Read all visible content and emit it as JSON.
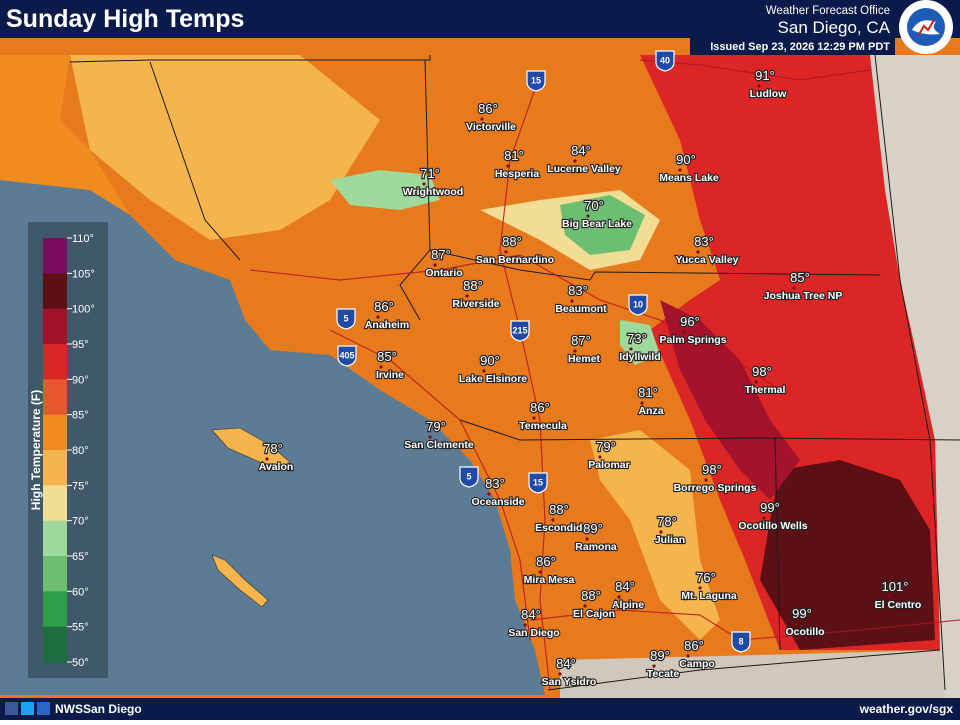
{
  "header": {
    "title": "Sunday High Temps",
    "office": "Weather Forecast Office",
    "location": "San Diego, CA",
    "issued": "Issued Sep 23, 2026 12:29 PM PDT"
  },
  "footer": {
    "social": "NWSSan Diego",
    "website": "weather.gov/sgx"
  },
  "legend": {
    "title": "High Temperature (F)",
    "ticks": [
      "110°",
      "105°",
      "100°",
      "95°",
      "90°",
      "85°",
      "80°",
      "75°",
      "70°",
      "65°",
      "60°",
      "55°",
      "50°"
    ],
    "colors": [
      "#7b0b5e",
      "#5c1016",
      "#a5122b",
      "#dc2626",
      "#e9572c",
      "#f08b1e",
      "#f6b44c",
      "#f2dd94",
      "#9fd99b",
      "#6cbf70",
      "#2f9e4b",
      "#1d6e3f"
    ]
  },
  "highways": [
    "15",
    "40",
    "5",
    "405",
    "215",
    "10",
    "5",
    "15",
    "8"
  ],
  "cities": [
    {
      "name": "Ludlow",
      "temp": "91°"
    },
    {
      "name": "Victorville",
      "temp": "86°"
    },
    {
      "name": "Hesperia",
      "temp": "81°"
    },
    {
      "name": "Lucerne Valley",
      "temp": "84°"
    },
    {
      "name": "Means Lake",
      "temp": "90°"
    },
    {
      "name": "Wrightwood",
      "temp": "71°"
    },
    {
      "name": "Big Bear Lake",
      "temp": "70°"
    },
    {
      "name": "Yucca Valley",
      "temp": "83°"
    },
    {
      "name": "Ontario",
      "temp": "87°"
    },
    {
      "name": "San Bernardino",
      "temp": "88°"
    },
    {
      "name": "Joshua Tree NP",
      "temp": "85°"
    },
    {
      "name": "Riverside",
      "temp": "88°"
    },
    {
      "name": "Beaumont",
      "temp": "83°"
    },
    {
      "name": "Anaheim",
      "temp": "86°"
    },
    {
      "name": "Palm Springs",
      "temp": "96°"
    },
    {
      "name": "Idyllwild",
      "temp": "73°"
    },
    {
      "name": "Hemet",
      "temp": "87°"
    },
    {
      "name": "Irvine",
      "temp": "85°"
    },
    {
      "name": "Lake Elsinore",
      "temp": "90°"
    },
    {
      "name": "Thermal",
      "temp": "98°"
    },
    {
      "name": "Anza",
      "temp": "81°"
    },
    {
      "name": "Temecula",
      "temp": "86°"
    },
    {
      "name": "San Clemente",
      "temp": "79°"
    },
    {
      "name": "Avalon",
      "temp": "78°"
    },
    {
      "name": "Palomar",
      "temp": "79°"
    },
    {
      "name": "Borrego Springs",
      "temp": "98°"
    },
    {
      "name": "Oceanside",
      "temp": "83°"
    },
    {
      "name": "Ocotillo Wells",
      "temp": "99°"
    },
    {
      "name": "Escondido",
      "temp": "88°"
    },
    {
      "name": "Ramona",
      "temp": "89°"
    },
    {
      "name": "Julian",
      "temp": "78°"
    },
    {
      "name": "Mira Mesa",
      "temp": "86°"
    },
    {
      "name": "Mt. Laguna",
      "temp": "76°"
    },
    {
      "name": "Alpine",
      "temp": "84°"
    },
    {
      "name": "El Cajon",
      "temp": "88°"
    },
    {
      "name": "El Centro",
      "temp": "101°"
    },
    {
      "name": "San Diego",
      "temp": "84°"
    },
    {
      "name": "Ocotillo",
      "temp": "99°"
    },
    {
      "name": "Campo",
      "temp": "86°"
    },
    {
      "name": "Tecate",
      "temp": "89°"
    },
    {
      "name": "San Ysidro",
      "temp": "84°"
    }
  ]
}
